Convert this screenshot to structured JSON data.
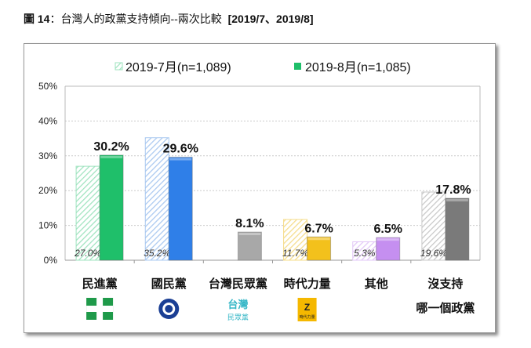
{
  "title_prefix": "圖 14",
  "title_main": "：台灣人的政黨支持傾向--兩次比較",
  "title_suffix": "[2019/7、2019/8]",
  "chart_data": {
    "type": "bar",
    "categories": [
      "民進黨",
      "國民黨",
      "台灣民眾黨",
      "時代力量",
      "其他",
      "沒支持"
    ],
    "category_sublabels": [
      "",
      "",
      "",
      "",
      "",
      "哪一個政黨"
    ],
    "series": [
      {
        "name": "2019-7月(n=1,089)",
        "values": [
          27.0,
          35.2,
          null,
          11.7,
          5.3,
          19.6
        ],
        "labels": [
          "27.0%",
          "35.2%",
          "",
          "11.7%",
          "5.3%",
          "19.6%"
        ],
        "style": "hatched"
      },
      {
        "name": "2019-8月(n=1,085)",
        "values": [
          30.2,
          29.6,
          8.1,
          6.7,
          6.5,
          17.8
        ],
        "labels": [
          "30.2%",
          "29.6%",
          "8.1%",
          "6.7%",
          "6.5%",
          "17.8%"
        ],
        "style": "solid"
      }
    ],
    "colors": [
      "#1fbf6a",
      "#2f7fe8",
      "#a8a8a8",
      "#f3c11c",
      "#c58ff0",
      "#7a7a7a"
    ],
    "hatch_colors": [
      "#9fe3bf",
      "#a9c8f0",
      "#cccccc",
      "#f5dc8a",
      "#e2c7f7",
      "#c8c8c8"
    ],
    "yticks": [
      "0%",
      "10%",
      "20%",
      "30%",
      "40%",
      "50%"
    ],
    "ylim": [
      0,
      50
    ],
    "grid": true,
    "legend": "top",
    "logos": [
      "dpp-logo",
      "kmt-logo",
      "tpp-logo",
      "npp-logo",
      "",
      ""
    ],
    "tpp_logo_text": "台灣民眾黨",
    "npp_logo_text": "時代力量"
  }
}
